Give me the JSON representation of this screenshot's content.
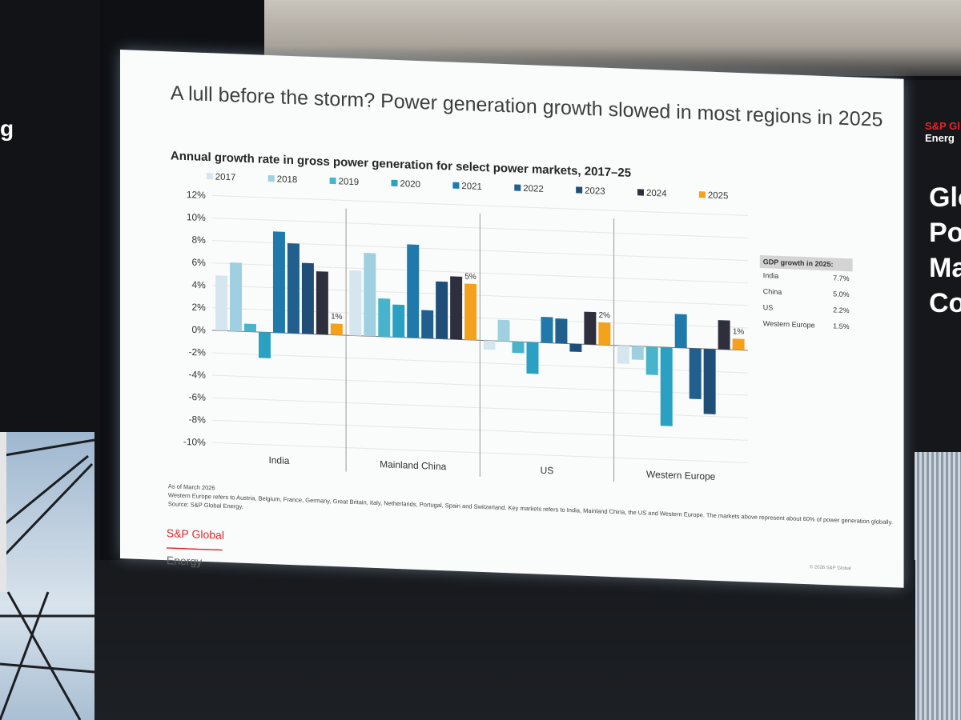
{
  "slide": {
    "title": "A lull before the storm? Power generation growth slowed in most regions in 2025",
    "notes": [
      "As of March 2026",
      "Western Europe refers to Austria, Belgium, France, Germany, Great Britain, Italy, Netherlands, Portugal, Spain and Switzerland. Key markets refers to India, Mainland China, the US and Western Europe. The markets above represent about 60% of power generation globally.",
      "Source: S&P Global Energy."
    ],
    "logo_line1": "S&P Global",
    "logo_line2": "Energy",
    "copyright": "© 2026 S&P Global"
  },
  "backdrop": {
    "right_logo_line1": "S&P Gl",
    "right_logo_line2": "Energ",
    "right_big_text": [
      "Glo",
      "Po",
      "Ma",
      "Co"
    ],
    "left_text": "g"
  },
  "gdp_table": {
    "header": "GDP growth in 2025:",
    "rows": [
      {
        "region": "India",
        "value": "7.7%"
      },
      {
        "region": "China",
        "value": "5.0%"
      },
      {
        "region": "US",
        "value": "2.2%"
      },
      {
        "region": "Western Europe",
        "value": "1.5%"
      }
    ]
  },
  "chart_data": {
    "type": "bar",
    "title": "Annual growth rate in gross power generation for select power markets, 2017–25",
    "categories": [
      "India",
      "Mainland China",
      "US",
      "Western Europe"
    ],
    "ylim": [
      -10,
      12
    ],
    "yticks": [
      "12%",
      "10%",
      "8%",
      "6%",
      "4%",
      "2%",
      "0%",
      "-2%",
      "-4%",
      "-6%",
      "-8%",
      "-10%"
    ],
    "legend_position": "top",
    "series": [
      {
        "name": "2017",
        "color": "#d6e6ee",
        "values": [
          4.9,
          5.8,
          -0.8,
          -1.6
        ]
      },
      {
        "name": "2018",
        "color": "#9fd0e2",
        "values": [
          6.1,
          7.4,
          1.9,
          -1.2
        ]
      },
      {
        "name": "2019",
        "color": "#48b4cc",
        "values": [
          0.7,
          3.4,
          -1.0,
          -2.5
        ]
      },
      {
        "name": "2020",
        "color": "#2aa1c3",
        "values": [
          -2.3,
          2.9,
          -2.8,
          -7.0
        ]
      },
      {
        "name": "2021",
        "color": "#1f7aab",
        "values": [
          9.0,
          8.3,
          2.3,
          3.0
        ]
      },
      {
        "name": "2022",
        "color": "#205f8e",
        "values": [
          8.0,
          2.5,
          2.2,
          -4.5
        ]
      },
      {
        "name": "2023",
        "color": "#1f4f79",
        "values": [
          6.3,
          5.1,
          -0.7,
          -5.8
        ]
      },
      {
        "name": "2024",
        "color": "#2e2f3d",
        "values": [
          5.6,
          5.6,
          2.9,
          2.6
        ]
      },
      {
        "name": "2025",
        "color": "#f4a11c",
        "values": [
          1.0,
          5.0,
          2.0,
          1.0
        ]
      }
    ],
    "data_labels": [
      {
        "category": "India",
        "series": "2025",
        "text": "1%"
      },
      {
        "category": "Mainland China",
        "series": "2025",
        "text": "5%"
      },
      {
        "category": "US",
        "series": "2025",
        "text": "2%"
      },
      {
        "category": "Western Europe",
        "series": "2025",
        "text": "1%"
      }
    ],
    "grid": true
  }
}
